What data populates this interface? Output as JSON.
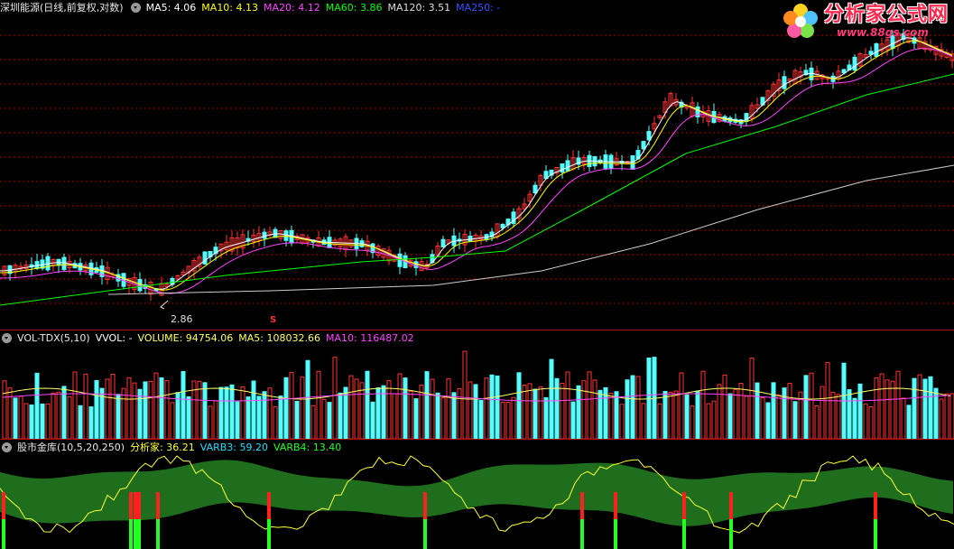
{
  "price_panel": {
    "title": "深圳能源(日线,前复权,对数)",
    "ma5": "MA5: 4.06",
    "ma10": "MA10: 4.13",
    "ma20": "MA20: 4.12",
    "ma60": "MA60: 3.86",
    "ma120": "MA120: 3.51",
    "ma250": "MA250: -",
    "low_marker": "2.86",
    "s_marker": "S",
    "colors": {
      "up": "#ff3333",
      "down": "#54ffff",
      "ma5": "#ffffff",
      "ma10": "#ffff00",
      "ma20": "#ff44ff",
      "ma60": "#00ff00",
      "ma120": "#cccccc",
      "ma250": "#3355ff",
      "grid": "#b00000"
    }
  },
  "volume_panel": {
    "title": "VOL-TDX(5,10)",
    "vvol": "VVOL: -",
    "volume": "VOLUME: 94754.06",
    "ma5": "MA5: 108032.66",
    "ma10": "MA10: 116487.02"
  },
  "indicator_panel": {
    "title": "股市金库(10,5,20,250)",
    "analyst": "分析家: 36.21",
    "varb3": "VARB3: 59.20",
    "varb4": "VARB4: 13.40",
    "colors": {
      "band": "#1e6e1e",
      "line": "#ffff33",
      "signal_top": "#ff2020",
      "signal_bottom": "#22ff22"
    }
  },
  "logo": {
    "name": "分析家公式网",
    "url": "www.88gs.com"
  }
}
